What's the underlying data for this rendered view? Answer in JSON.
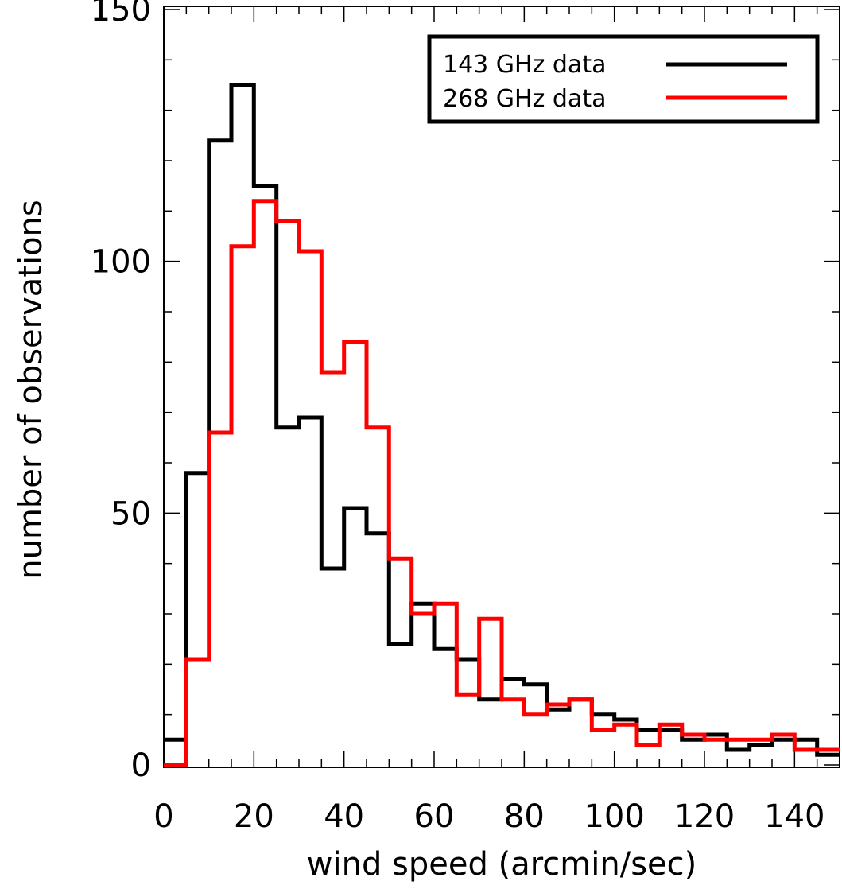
{
  "chart_data": {
    "type": "histogram",
    "xlabel": "wind speed (arcmin/sec)",
    "ylabel": "number of observations",
    "xlim": [
      0,
      150
    ],
    "ylim": [
      0,
      150
    ],
    "xticks": [
      0,
      20,
      40,
      60,
      80,
      100,
      120,
      140
    ],
    "yticks": [
      0,
      50,
      100,
      150
    ],
    "grid": false,
    "legend_position": "top-right",
    "bin_width": 5,
    "bin_edges": [
      0,
      5,
      10,
      15,
      20,
      25,
      30,
      35,
      40,
      45,
      50,
      55,
      60,
      65,
      70,
      75,
      80,
      85,
      90,
      95,
      100,
      105,
      110,
      115,
      120,
      125,
      130,
      135,
      140,
      145,
      150
    ],
    "series": [
      {
        "name": "143 GHz data",
        "color": "#000000",
        "values": [
          5,
          58,
          124,
          135,
          115,
          67,
          69,
          39,
          51,
          46,
          24,
          32,
          23,
          21,
          13,
          17,
          16,
          11,
          13,
          10,
          9,
          7,
          7,
          5,
          6,
          3,
          4,
          5,
          5,
          2
        ]
      },
      {
        "name": "268 GHz data",
        "color": "#ff0000",
        "values": [
          0,
          21,
          66,
          103,
          112,
          108,
          102,
          78,
          84,
          67,
          41,
          30,
          32,
          14,
          29,
          13,
          10,
          12,
          13,
          7,
          8,
          4,
          8,
          6,
          5,
          5,
          5,
          6,
          3,
          3
        ]
      }
    ]
  }
}
